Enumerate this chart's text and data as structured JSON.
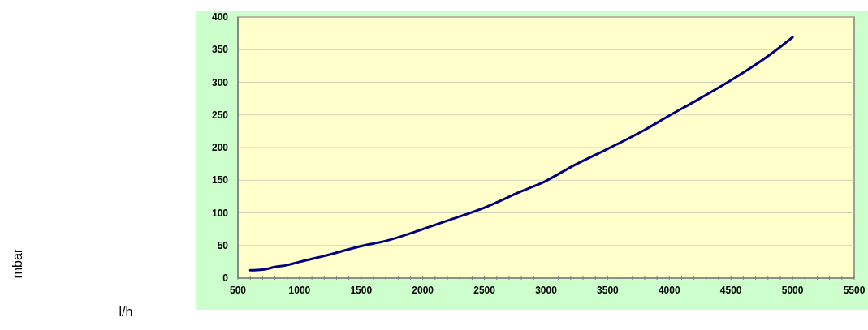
{
  "chart_data": {
    "type": "line",
    "annotations": [
      "mbar",
      "l/h"
    ],
    "series": [
      {
        "color": "#000080",
        "x": [
          600,
          700,
          800,
          900,
          1000,
          1200,
          1500,
          1700,
          2000,
          2200,
          2500,
          2800,
          3000,
          3200,
          3500,
          3800,
          4000,
          4200,
          4500,
          4800,
          5000
        ],
        "values": [
          12,
          13,
          17,
          20,
          25,
          34,
          49,
          57,
          75,
          88,
          108,
          133,
          149,
          170,
          198,
          227,
          249,
          270,
          303,
          340,
          369
        ]
      }
    ],
    "xlim": [
      500,
      5500
    ],
    "xticks": [
      500,
      1000,
      1500,
      2000,
      2500,
      3000,
      3500,
      4000,
      4500,
      5000,
      5500
    ],
    "ylim": [
      0,
      400
    ],
    "yticks": [
      0,
      50,
      100,
      150,
      200,
      250,
      300,
      350,
      400
    ],
    "grid": "y"
  }
}
